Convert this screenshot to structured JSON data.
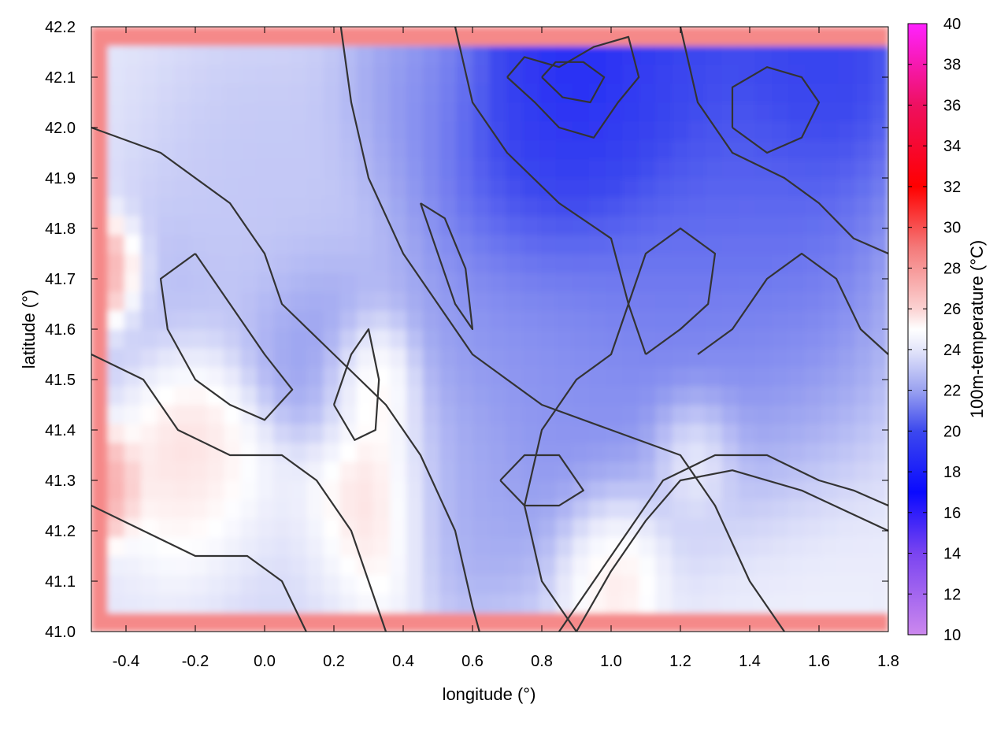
{
  "chart_data": {
    "type": "heatmap",
    "title": "",
    "xlabel": "longitude (°)",
    "ylabel": "latitude (°)",
    "xlim": [
      -0.5,
      1.8
    ],
    "ylim": [
      41.0,
      42.2
    ],
    "x_ticks": [
      -0.4,
      -0.2,
      0.0,
      0.2,
      0.4,
      0.6,
      0.8,
      1.0,
      1.2,
      1.4,
      1.6,
      1.8
    ],
    "x_tick_labels": [
      "-0.4",
      "-0.2",
      "0.0",
      "0.2",
      "0.4",
      "0.6",
      "0.8",
      "1.0",
      "1.2",
      "1.4",
      "1.6",
      "1.8"
    ],
    "y_ticks": [
      41.0,
      41.1,
      41.2,
      41.3,
      41.4,
      41.5,
      41.6,
      41.7,
      41.8,
      41.9,
      42.0,
      42.1,
      42.2
    ],
    "y_tick_labels": [
      "41.0",
      "41.1",
      "41.2",
      "41.3",
      "41.4",
      "41.5",
      "41.6",
      "41.7",
      "41.8",
      "41.9",
      "42.0",
      "42.1",
      "42.2"
    ],
    "grid": true,
    "colorbar": {
      "label": "100m-temperature (°C)",
      "range": [
        10,
        40
      ],
      "ticks": [
        10,
        12,
        14,
        16,
        18,
        20,
        22,
        24,
        26,
        28,
        30,
        32,
        34,
        36,
        38,
        40
      ],
      "tick_labels": [
        "10",
        "12",
        "14",
        "16",
        "18",
        "20",
        "22",
        "24",
        "26",
        "28",
        "30",
        "32",
        "34",
        "36",
        "38",
        "40"
      ],
      "stops": [
        {
          "value": 10,
          "color": "#cc88ee"
        },
        {
          "value": 14,
          "color": "#7a44f0"
        },
        {
          "value": 17,
          "color": "#0a0aff"
        },
        {
          "value": 20,
          "color": "#3c48ee"
        },
        {
          "value": 22,
          "color": "#9aa2f0"
        },
        {
          "value": 24,
          "color": "#e4e6fa"
        },
        {
          "value": 25,
          "color": "#ffffff"
        },
        {
          "value": 26,
          "color": "#fbd2d2"
        },
        {
          "value": 29,
          "color": "#f47a7a"
        },
        {
          "value": 32,
          "color": "#ff0000"
        },
        {
          "value": 36,
          "color": "#ee1060"
        },
        {
          "value": 40,
          "color": "#ff22ff"
        }
      ]
    },
    "field_blobs": [
      {
        "x": 0.9,
        "y": 42.08,
        "r": 0.3,
        "t": 17.5
      },
      {
        "x": 1.2,
        "y": 42.12,
        "r": 0.35,
        "t": 19.5
      },
      {
        "x": 1.6,
        "y": 42.12,
        "r": 0.25,
        "t": 19.0
      },
      {
        "x": 0.75,
        "y": 41.95,
        "r": 0.25,
        "t": 19.5
      },
      {
        "x": 1.45,
        "y": 41.85,
        "r": 0.35,
        "t": 20.5
      },
      {
        "x": 1.1,
        "y": 41.7,
        "r": 0.35,
        "t": 21.0
      },
      {
        "x": 0.7,
        "y": 41.65,
        "r": 0.3,
        "t": 21.5
      },
      {
        "x": 0.5,
        "y": 42.05,
        "r": 0.25,
        "t": 21.5
      },
      {
        "x": 0.15,
        "y": 41.55,
        "r": 0.2,
        "t": 21.5
      },
      {
        "x": 0.9,
        "y": 41.35,
        "r": 0.25,
        "t": 21.5
      },
      {
        "x": 1.4,
        "y": 41.45,
        "r": 0.3,
        "t": 21.5
      },
      {
        "x": 0.55,
        "y": 41.25,
        "r": 0.2,
        "t": 22.0
      },
      {
        "x": 0.0,
        "y": 41.85,
        "r": 0.3,
        "t": 23.0
      },
      {
        "x": -0.3,
        "y": 41.6,
        "r": 0.2,
        "t": 22.5
      },
      {
        "x": 0.3,
        "y": 41.5,
        "r": 0.12,
        "t": 26.5
      },
      {
        "x": 0.3,
        "y": 41.25,
        "r": 0.2,
        "t": 26.5
      },
      {
        "x": -0.15,
        "y": 41.3,
        "r": 0.2,
        "t": 25.8
      },
      {
        "x": -0.25,
        "y": 41.45,
        "r": 0.15,
        "t": 26.5
      },
      {
        "x": 1.0,
        "y": 41.15,
        "r": 0.15,
        "t": 26.5
      },
      {
        "x": 1.25,
        "y": 41.35,
        "r": 0.12,
        "t": 26.0
      },
      {
        "x": -0.45,
        "y": 41.7,
        "r": 0.1,
        "t": 29.0
      },
      {
        "x": -0.48,
        "y": 41.3,
        "r": 0.1,
        "t": 28.0
      },
      {
        "x": 1.5,
        "y": 41.1,
        "r": 0.3,
        "t": 24.5
      },
      {
        "x": 0.05,
        "y": 41.1,
        "r": 0.25,
        "t": 23.5
      }
    ],
    "contours": [
      [
        [
          -0.5,
          42.0
        ],
        [
          -0.3,
          41.95
        ],
        [
          -0.1,
          41.85
        ],
        [
          0.0,
          41.75
        ],
        [
          0.05,
          41.65
        ],
        [
          0.2,
          41.55
        ],
        [
          0.35,
          41.45
        ],
        [
          0.45,
          41.35
        ],
        [
          0.55,
          41.2
        ],
        [
          0.6,
          41.05
        ],
        [
          0.62,
          41.0
        ]
      ],
      [
        [
          0.22,
          42.2
        ],
        [
          0.25,
          42.05
        ],
        [
          0.3,
          41.9
        ],
        [
          0.4,
          41.75
        ],
        [
          0.5,
          41.65
        ],
        [
          0.6,
          41.55
        ],
        [
          0.8,
          41.45
        ],
        [
          1.0,
          41.4
        ],
        [
          1.2,
          41.35
        ],
        [
          1.3,
          41.25
        ],
        [
          1.4,
          41.1
        ],
        [
          1.5,
          41.0
        ]
      ],
      [
        [
          0.55,
          42.2
        ],
        [
          0.6,
          42.05
        ],
        [
          0.7,
          41.95
        ],
        [
          0.85,
          41.85
        ],
        [
          1.0,
          41.78
        ],
        [
          1.05,
          41.65
        ],
        [
          1.0,
          41.55
        ],
        [
          0.9,
          41.5
        ],
        [
          0.8,
          41.4
        ],
        [
          0.75,
          41.25
        ],
        [
          0.8,
          41.1
        ],
        [
          0.9,
          41.0
        ]
      ],
      [
        [
          0.7,
          42.1
        ],
        [
          0.78,
          42.05
        ],
        [
          0.85,
          42.0
        ],
        [
          0.95,
          41.98
        ],
        [
          1.02,
          42.05
        ],
        [
          1.08,
          42.1
        ],
        [
          1.05,
          42.18
        ],
        [
          0.95,
          42.16
        ],
        [
          0.85,
          42.12
        ],
        [
          0.75,
          42.14
        ],
        [
          0.7,
          42.1
        ]
      ],
      [
        [
          0.8,
          42.1
        ],
        [
          0.86,
          42.06
        ],
        [
          0.94,
          42.05
        ],
        [
          0.98,
          42.1
        ],
        [
          0.92,
          42.13
        ],
        [
          0.84,
          42.13
        ],
        [
          0.8,
          42.1
        ]
      ],
      [
        [
          1.2,
          42.2
        ],
        [
          1.25,
          42.05
        ],
        [
          1.35,
          41.95
        ],
        [
          1.5,
          41.9
        ],
        [
          1.6,
          41.85
        ],
        [
          1.7,
          41.78
        ],
        [
          1.8,
          41.75
        ]
      ],
      [
        [
          -0.5,
          41.55
        ],
        [
          -0.35,
          41.5
        ],
        [
          -0.25,
          41.4
        ],
        [
          -0.1,
          41.35
        ],
        [
          0.05,
          41.35
        ],
        [
          0.15,
          41.3
        ],
        [
          0.25,
          41.2
        ],
        [
          0.3,
          41.1
        ],
        [
          0.35,
          41.0
        ]
      ],
      [
        [
          -0.5,
          41.25
        ],
        [
          -0.35,
          41.2
        ],
        [
          -0.2,
          41.15
        ],
        [
          -0.05,
          41.15
        ],
        [
          0.05,
          41.1
        ],
        [
          0.12,
          41.0
        ]
      ],
      [
        [
          0.85,
          41.0
        ],
        [
          0.95,
          41.1
        ],
        [
          1.05,
          41.2
        ],
        [
          1.15,
          41.3
        ],
        [
          1.3,
          41.35
        ],
        [
          1.45,
          41.35
        ],
        [
          1.6,
          41.3
        ],
        [
          1.7,
          41.28
        ],
        [
          1.8,
          41.25
        ]
      ],
      [
        [
          0.9,
          41.0
        ],
        [
          1.0,
          41.12
        ],
        [
          1.1,
          41.22
        ],
        [
          1.2,
          41.3
        ],
        [
          1.35,
          41.32
        ],
        [
          1.55,
          41.28
        ],
        [
          1.8,
          41.2
        ]
      ],
      [
        [
          1.25,
          41.55
        ],
        [
          1.35,
          41.6
        ],
        [
          1.45,
          41.7
        ],
        [
          1.55,
          41.75
        ],
        [
          1.65,
          41.7
        ],
        [
          1.72,
          41.6
        ],
        [
          1.8,
          41.55
        ]
      ],
      [
        [
          -0.2,
          41.75
        ],
        [
          -0.1,
          41.65
        ],
        [
          0.0,
          41.55
        ],
        [
          0.08,
          41.48
        ],
        [
          0.0,
          41.42
        ],
        [
          -0.1,
          41.45
        ],
        [
          -0.2,
          41.5
        ],
        [
          -0.28,
          41.6
        ],
        [
          -0.3,
          41.7
        ],
        [
          -0.2,
          41.75
        ]
      ],
      [
        [
          0.2,
          41.45
        ],
        [
          0.25,
          41.55
        ],
        [
          0.3,
          41.6
        ],
        [
          0.33,
          41.5
        ],
        [
          0.32,
          41.4
        ],
        [
          0.26,
          41.38
        ],
        [
          0.2,
          41.45
        ]
      ],
      [
        [
          0.45,
          41.85
        ],
        [
          0.5,
          41.75
        ],
        [
          0.55,
          41.65
        ],
        [
          0.6,
          41.6
        ],
        [
          0.58,
          41.72
        ],
        [
          0.52,
          41.82
        ],
        [
          0.45,
          41.85
        ]
      ],
      [
        [
          0.68,
          41.3
        ],
        [
          0.75,
          41.35
        ],
        [
          0.85,
          41.35
        ],
        [
          0.92,
          41.28
        ],
        [
          0.85,
          41.25
        ],
        [
          0.75,
          41.25
        ],
        [
          0.68,
          41.3
        ]
      ],
      [
        [
          1.1,
          41.55
        ],
        [
          1.2,
          41.6
        ],
        [
          1.28,
          41.65
        ],
        [
          1.3,
          41.75
        ],
        [
          1.2,
          41.8
        ],
        [
          1.1,
          41.75
        ],
        [
          1.05,
          41.65
        ],
        [
          1.1,
          41.55
        ]
      ],
      [
        [
          1.35,
          42.0
        ],
        [
          1.45,
          41.95
        ],
        [
          1.55,
          41.98
        ],
        [
          1.6,
          42.05
        ],
        [
          1.55,
          42.1
        ],
        [
          1.45,
          42.12
        ],
        [
          1.35,
          42.08
        ],
        [
          1.35,
          42.0
        ]
      ]
    ]
  }
}
